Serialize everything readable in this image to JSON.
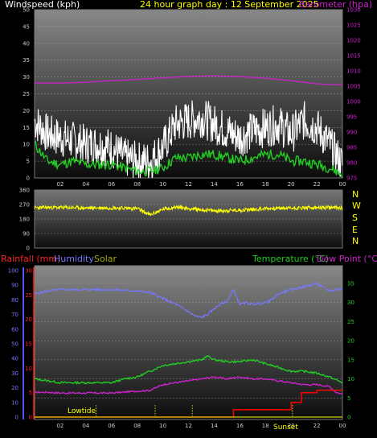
{
  "header": {
    "title": "24 hour graph day : 12 September 2025",
    "left_label": "Windspeed (kph)",
    "right_label": "Barometer (hpa)"
  },
  "direction_panel": {
    "compass": [
      "N",
      "W",
      "S",
      "E",
      "N"
    ]
  },
  "bottom_header": {
    "rainfall": "Rainfall (mm)",
    "humidity": "Humidity",
    "solar": "Solar",
    "temperature": "Temperature (°C)",
    "dewpoint": "Dew Point (°C)"
  },
  "annotations": {
    "lowtide": "Lowtide",
    "sunset": "Sunset"
  },
  "colors": {
    "wind_gust": "#ffffff",
    "wind_avg": "#22cc22",
    "barometer": "#cc22cc",
    "direction": "#ffff00",
    "humidity": "#7777ff",
    "temperature": "#22cc22",
    "dewpoint": "#cc22cc",
    "rainfall": "#ff0000",
    "solar": "#aaaa00"
  },
  "chart_data": [
    {
      "type": "line",
      "name": "wind-and-barometer",
      "x_ticks": [
        "02",
        "04",
        "06",
        "08",
        "10",
        "12",
        "14",
        "16",
        "18",
        "20",
        "22",
        "00"
      ],
      "y_left_ticks": [
        "0",
        "5",
        "10",
        "15",
        "20",
        "25",
        "30",
        "35",
        "40",
        "45",
        "50"
      ],
      "y_right_ticks": [
        "975",
        "980",
        "985",
        "990",
        "995",
        "1000",
        "1005",
        "1010",
        "1015",
        "1020",
        "1025",
        "1030"
      ],
      "ylim_left": [
        0,
        50
      ],
      "ylim_right": [
        975,
        1030
      ],
      "series": [
        {
          "name": "Windspeed (kph)",
          "axis": "left",
          "x": [
            0,
            1,
            2,
            3,
            4,
            5,
            6,
            7,
            8,
            9,
            10,
            11,
            12,
            13,
            14,
            15,
            16,
            17,
            18,
            19,
            20,
            21,
            22,
            23,
            24
          ],
          "values": [
            17,
            13,
            12,
            11,
            10,
            10,
            9,
            6,
            5,
            5,
            9,
            16,
            17,
            18,
            16,
            14,
            12,
            14,
            15,
            16,
            13,
            17,
            15,
            10,
            4
          ]
        },
        {
          "name": "Average windspeed",
          "axis": "left",
          "x": [
            0,
            1,
            2,
            3,
            4,
            5,
            6,
            7,
            8,
            9,
            10,
            11,
            12,
            13,
            14,
            15,
            16,
            17,
            18,
            19,
            20,
            21,
            22,
            23,
            24
          ],
          "values": [
            10,
            5,
            4,
            5,
            4,
            4,
            4,
            3,
            2,
            2,
            3,
            6,
            6,
            7,
            7,
            6,
            5,
            6,
            7,
            7,
            5,
            5,
            4,
            3,
            1
          ]
        },
        {
          "name": "Barometer (hpa)",
          "axis": "right",
          "x": [
            0,
            2,
            4,
            6,
            8,
            10,
            12,
            14,
            16,
            18,
            20,
            22,
            23,
            24
          ],
          "values": [
            1006.0,
            1006.0,
            1006.3,
            1006.8,
            1007.2,
            1007.7,
            1008.2,
            1008.4,
            1008.1,
            1007.6,
            1006.8,
            1005.8,
            1005.5,
            1005.5
          ]
        }
      ]
    },
    {
      "type": "line",
      "name": "wind-direction",
      "y_ticks": [
        "0",
        "90",
        "180",
        "270",
        "360"
      ],
      "ylim": [
        0,
        360
      ],
      "series": [
        {
          "name": "Direction",
          "x": [
            0,
            2,
            4,
            6,
            8,
            9,
            10,
            11,
            12,
            14,
            16,
            18,
            20,
            22,
            24
          ],
          "values": [
            250,
            252,
            248,
            250,
            245,
            205,
            240,
            255,
            245,
            230,
            235,
            245,
            248,
            250,
            250
          ]
        }
      ]
    },
    {
      "type": "line",
      "name": "temperature-humidity-rainfall",
      "x_ticks": [
        "02",
        "04",
        "06",
        "08",
        "10",
        "12",
        "14",
        "16",
        "18",
        "20",
        "22",
        "00"
      ],
      "y_humidity_ticks": [
        "0",
        "10",
        "20",
        "30",
        "40",
        "50",
        "60",
        "70",
        "80",
        "90",
        "100"
      ],
      "y_rain_ticks": [
        "0",
        "5",
        "10",
        "15",
        "20",
        "25",
        "30"
      ],
      "y_temp_ticks": [
        "0",
        "5",
        "10",
        "15",
        "20",
        "25",
        "30",
        "35"
      ],
      "ylim_humidity": [
        0,
        100
      ],
      "ylim_rain": [
        0,
        30
      ],
      "ylim_temp": [
        0,
        35
      ],
      "series": [
        {
          "name": "Humidity",
          "axis": "humidity",
          "x": [
            0,
            1,
            2,
            4,
            6,
            8,
            9,
            10,
            11,
            12,
            12.5,
            13,
            13.5,
            14,
            14.5,
            15,
            15.5,
            16,
            16.5,
            17,
            18,
            18.5,
            19,
            20,
            21,
            22,
            23,
            23.5,
            24
          ],
          "values": [
            84,
            86,
            87,
            87,
            87,
            86,
            85,
            81,
            77,
            72,
            69,
            68,
            70,
            74,
            77,
            79,
            87,
            77,
            78,
            77,
            78,
            80,
            84,
            87,
            89,
            91,
            86,
            87,
            88
          ]
        },
        {
          "name": "Temperature (°C)",
          "axis": "temp",
          "x": [
            0,
            1,
            2,
            3,
            4,
            5,
            6,
            7,
            8,
            9,
            10,
            11,
            12,
            13,
            13.5,
            14,
            15,
            16,
            17,
            18,
            19,
            20,
            21,
            22,
            23,
            24
          ],
          "values": [
            10,
            9.5,
            9,
            9,
            9,
            9,
            9,
            10,
            10.5,
            12,
            13.5,
            14,
            14.5,
            15,
            16,
            15,
            14.5,
            14.5,
            15,
            14,
            13,
            12,
            12,
            11.5,
            10.5,
            9
          ]
        },
        {
          "name": "Dew Point (°C)",
          "axis": "temp",
          "x": [
            0,
            1,
            2,
            4,
            6,
            8,
            9,
            10,
            11,
            12,
            13,
            14,
            15,
            16,
            17,
            18,
            19,
            20,
            21,
            22,
            23,
            23.5,
            24
          ],
          "values": [
            6.5,
            6.5,
            6.3,
            6.3,
            6.3,
            6.8,
            7,
            8.5,
            9,
            9.5,
            10,
            10.5,
            10,
            10.5,
            10,
            10,
            9.5,
            9,
            8.5,
            8.5,
            8,
            6.5,
            6
          ]
        },
        {
          "name": "Rainfall (mm)",
          "axis": "rain",
          "step": true,
          "x": [
            0,
            15.5,
            15.5,
            20,
            20,
            20.8,
            20.8,
            22,
            22,
            24
          ],
          "values": [
            0,
            0,
            1.5,
            1.5,
            3,
            3,
            5,
            5,
            5.5,
            5.5
          ]
        }
      ]
    }
  ]
}
